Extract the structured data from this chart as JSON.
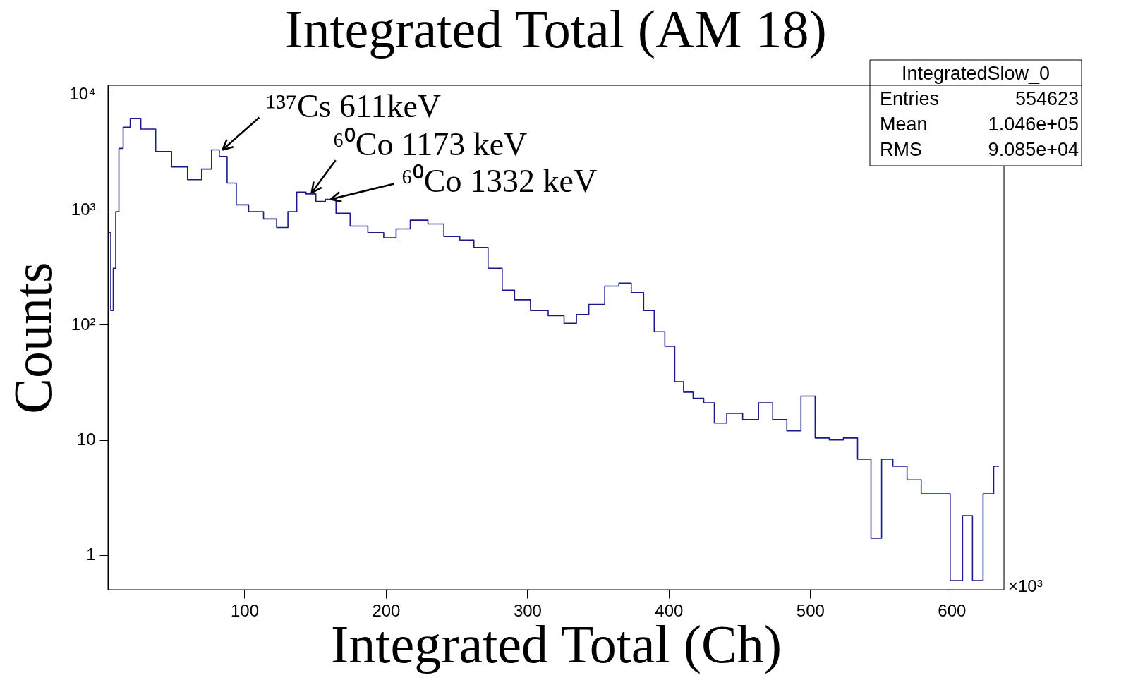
{
  "chart_data": {
    "type": "step",
    "title": "Integrated Total (AM 18)",
    "xlabel": "Integrated Total (Ch)",
    "ylabel": "Counts",
    "color": "#1a1a8c",
    "x": [
      4.5,
      6.5,
      8,
      10,
      12.5,
      16,
      22.5,
      31,
      43.5,
      53.5,
      66,
      73.5,
      80,
      84.5,
      91,
      97.5,
      108.5,
      118.5,
      127,
      134.5,
      139.5,
      147.5,
      153.5,
      161,
      168.5,
      181,
      193.5,
      203.5,
      211,
      223.5,
      236,
      246,
      258.5,
      266,
      278.5,
      286,
      296,
      308.5,
      321,
      331,
      338.5,
      348.5,
      361,
      368.5,
      378.5,
      386,
      393.5,
      401,
      407.5,
      413.5,
      421,
      428.5,
      436,
      446,
      458.5,
      468.5,
      478.5,
      488.5,
      498.5,
      508.5,
      518.5,
      528.5,
      538.5,
      547.5,
      553.5,
      563.5,
      573.5,
      583.5,
      593.5,
      604.5,
      611,
      618.5,
      626,
      633.5
    ],
    "values": [
      630,
      133,
      310,
      960,
      3400,
      5200,
      6200,
      5000,
      3200,
      2350,
      1820,
      2250,
      3300,
      2900,
      1700,
      1100,
      960,
      830,
      700,
      960,
      1420,
      1370,
      1180,
      1230,
      930,
      720,
      630,
      570,
      680,
      810,
      750,
      585,
      545,
      470,
      310,
      200,
      165,
      133,
      120,
      103,
      123,
      150,
      217,
      230,
      190,
      133,
      87,
      65,
      32,
      26,
      23,
      21,
      14,
      17,
      15,
      21,
      15,
      12,
      24,
      10.4,
      10,
      10.4,
      6.8,
      1.4,
      6.8,
      5.9,
      4.5,
      3.4,
      3.4,
      0.6,
      2.2,
      0.6,
      3.4,
      5.9
    ],
    "xlim": [
      3.5,
      637
    ],
    "xticks": [
      100,
      200,
      300,
      400,
      500,
      600
    ],
    "ylim": [
      0.5,
      12000
    ],
    "yticks": [
      1,
      10,
      {
        "value": 100,
        "label": "10²"
      },
      {
        "value": 1000,
        "label": "10³"
      },
      {
        "value": 10000,
        "label": "10⁴"
      }
    ],
    "log": "y",
    "grid": false,
    "annotations": [
      {
        "text": "¹³⁷Cs 611keV",
        "x": 84.5,
        "y": 3300
      },
      {
        "text": "⁶⁰Co 1173 keV",
        "x": 147.5,
        "y": 1400
      },
      {
        "text": "⁶⁰Co 1332 keV",
        "x": 161,
        "y": 1230
      },
      "IntegratedSlow_0",
      "Entries",
      "554623",
      "Mean",
      "1.046e+05",
      "RMS",
      "9.085e+04",
      "×10³"
    ]
  }
}
